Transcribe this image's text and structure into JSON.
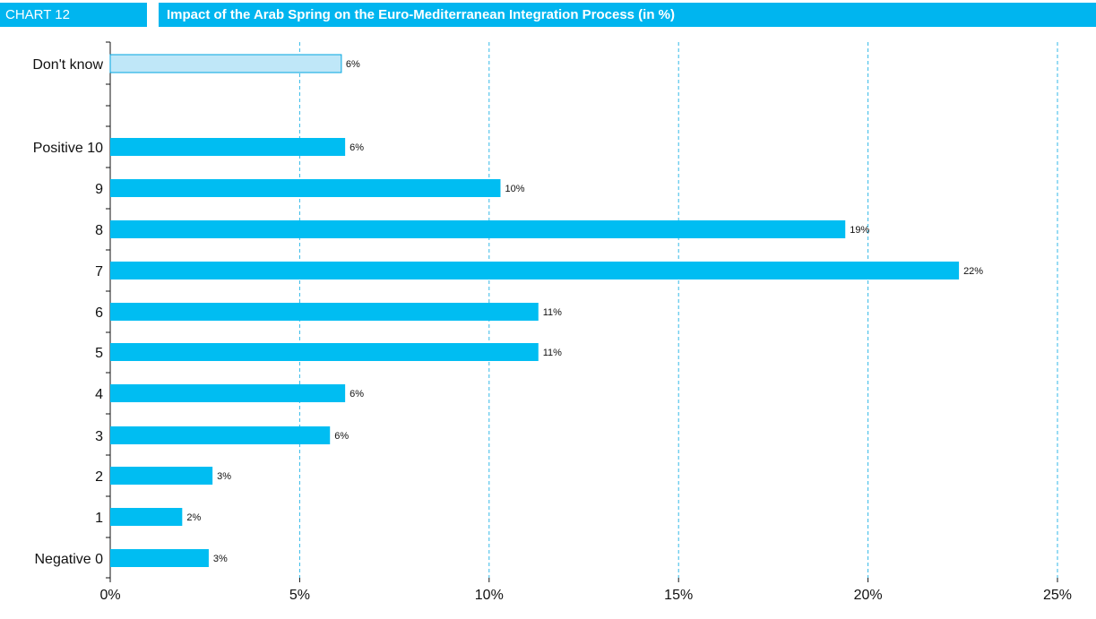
{
  "header": {
    "tag": "CHART 12",
    "title": "Impact of the Arab Spring on the Euro-Mediterranean Integration Process (in %)"
  },
  "colors": {
    "bar": "#00bdf2",
    "bar_dontknow": "#bfe7f8",
    "bar_dontknow_stroke": "#00a6e0",
    "grid": "#33b9e8",
    "header_bg": "#00b5ef"
  },
  "chart_data": {
    "type": "bar",
    "orientation": "horizontal",
    "title": "Impact of the Arab Spring on the Euro-Mediterranean Integration Process (in %)",
    "categories": [
      "Don't know",
      "Positive 10",
      "9",
      "8",
      "7",
      "6",
      "5",
      "4",
      "3",
      "2",
      "1",
      "Negative 0"
    ],
    "values": [
      6.1,
      6.2,
      10.3,
      19.4,
      22.4,
      11.3,
      11.3,
      6.2,
      5.8,
      2.7,
      1.9,
      2.6
    ],
    "data_labels": [
      "6%",
      "6%",
      "10%",
      "19%",
      "22%",
      "11%",
      "11%",
      "6%",
      "6%",
      "3%",
      "2%",
      "3%"
    ],
    "xlim": [
      0,
      25
    ],
    "x_ticks": [
      0,
      5,
      10,
      15,
      20,
      25
    ],
    "x_tick_labels": [
      "0%",
      "5%",
      "10%",
      "15%",
      "20%",
      "25%"
    ],
    "grid": "vertical dashed"
  }
}
